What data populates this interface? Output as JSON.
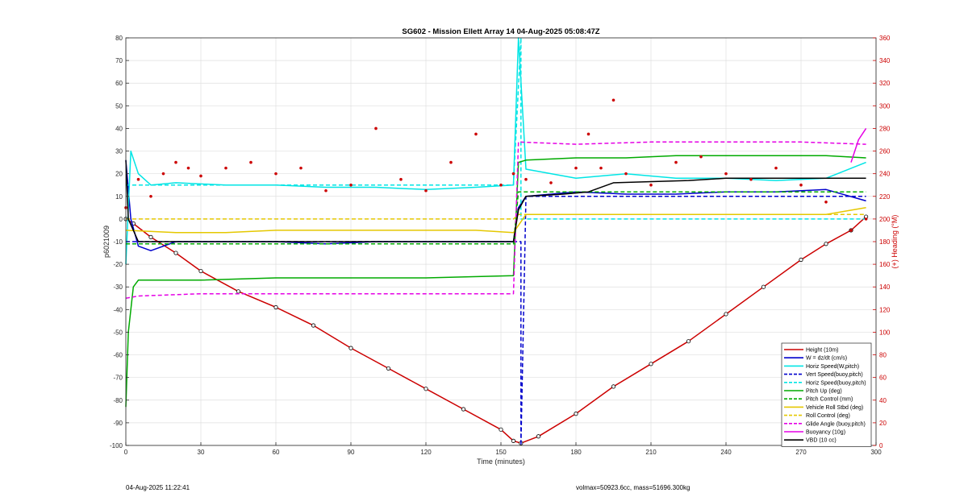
{
  "footer": {
    "timestamp": "04-Aug-2025 11:22:41",
    "volmax_mass": "volmax=50923.6cc, mass=51696.300kg"
  },
  "chart_data": {
    "type": "line",
    "title": "SG602 - Mission Ellett Array 14 04-Aug-2025 05:08:47Z",
    "xlabel": "Time (minutes)",
    "ylabel": "p6021009",
    "y2label": "(+) Heading (°M)",
    "xlim": [
      0,
      300
    ],
    "ylim": [
      -100,
      80
    ],
    "y2lim": [
      0,
      360
    ],
    "xticks": [
      0,
      30,
      60,
      90,
      120,
      150,
      180,
      210,
      240,
      270,
      300
    ],
    "yticks": [
      -100,
      -90,
      -80,
      -70,
      -60,
      -50,
      -40,
      -30,
      -20,
      -10,
      0,
      10,
      20,
      30,
      40,
      50,
      60,
      70,
      80
    ],
    "y2ticks": [
      0,
      20,
      40,
      60,
      80,
      100,
      120,
      140,
      160,
      180,
      200,
      220,
      240,
      260,
      280,
      300,
      320,
      340,
      360
    ],
    "grid": true,
    "legend_position": "bottom-right",
    "legend": [
      {
        "label": "Height (10m)",
        "color": "#cc0000",
        "style": "solid"
      },
      {
        "label": "W = dz/dt (cm/s)",
        "color": "#0000cc",
        "style": "solid"
      },
      {
        "label": "Horiz Speed(W,pitch)",
        "color": "#00e5e5",
        "style": "solid"
      },
      {
        "label": "Vert Speed(buoy,pitch)",
        "color": "#0000cc",
        "style": "dashed"
      },
      {
        "label": "Horiz Speed(buoy,pitch)",
        "color": "#00e5e5",
        "style": "dashed"
      },
      {
        "label": "Pitch Up (deg)",
        "color": "#00aa00",
        "style": "solid"
      },
      {
        "label": "Pitch Control (mm)",
        "color": "#00aa00",
        "style": "dashed"
      },
      {
        "label": "Vehicle Roll Stbd (deg)",
        "color": "#e5c800",
        "style": "solid"
      },
      {
        "label": "Roll Control (deg)",
        "color": "#e5c800",
        "style": "dashed"
      },
      {
        "label": "Glide Angle (buoy,pitch)",
        "color": "#e500e5",
        "style": "dashed"
      },
      {
        "label": "Buoyancy (10g)",
        "color": "#e500e5",
        "style": "solid"
      },
      {
        "label": "VBD (10 cc)",
        "color": "#000000",
        "style": "solid"
      }
    ],
    "series": [
      {
        "name": "Height (10m)",
        "x": [
          0,
          3,
          10,
          20,
          30,
          45,
          60,
          75,
          90,
          105,
          120,
          135,
          150,
          155,
          158,
          165,
          180,
          195,
          210,
          225,
          240,
          255,
          270,
          280,
          290,
          296
        ],
        "values": [
          0,
          -2,
          -8,
          -15,
          -23,
          -32,
          -39,
          -47,
          -57,
          -66,
          -75,
          -84,
          -93,
          -98,
          -99,
          -96,
          -86,
          -74,
          -64,
          -54,
          -42,
          -30,
          -18,
          -11,
          -5,
          1
        ]
      },
      {
        "name": "W = dz/dt (cm/s)",
        "x": [
          0,
          2,
          5,
          10,
          20,
          40,
          60,
          80,
          100,
          120,
          140,
          155,
          157,
          160,
          180,
          200,
          220,
          240,
          260,
          280,
          296
        ],
        "values": [
          26,
          0,
          -12,
          -14,
          -10,
          -10,
          -10,
          -11,
          -10,
          -10,
          -10,
          -10,
          5,
          10,
          12,
          11,
          11,
          12,
          12,
          13,
          8
        ]
      },
      {
        "name": "Horiz Speed(W,pitch)",
        "x": [
          0,
          2,
          5,
          10,
          20,
          40,
          60,
          80,
          100,
          120,
          140,
          155,
          157,
          160,
          180,
          200,
          220,
          240,
          260,
          280,
          296
        ],
        "values": [
          -20,
          30,
          20,
          15,
          16,
          15,
          15,
          14,
          14,
          13,
          14,
          15,
          80,
          22,
          18,
          20,
          18,
          18,
          17,
          18,
          25
        ]
      },
      {
        "name": "Vert Speed(buoy,pitch)",
        "x": [
          0,
          155,
          158,
          158,
          160,
          296
        ],
        "values": [
          -10,
          -10,
          -10,
          -100,
          10,
          10
        ]
      },
      {
        "name": "Horiz Speed(buoy,pitch)",
        "x": [
          0,
          155,
          158,
          158,
          296
        ],
        "values": [
          15,
          15,
          80,
          0,
          0
        ]
      },
      {
        "name": "Pitch Up (deg)",
        "x": [
          0,
          1,
          3,
          5,
          10,
          30,
          60,
          90,
          120,
          155,
          157,
          160,
          180,
          200,
          220,
          240,
          260,
          280,
          296
        ],
        "values": [
          -83,
          -50,
          -30,
          -27,
          -27,
          -27,
          -26,
          -26,
          -26,
          -25,
          25,
          26,
          27,
          27,
          28,
          28,
          28,
          28,
          27
        ]
      },
      {
        "name": "Pitch Control (mm)",
        "x": [
          0,
          155,
          157,
          296
        ],
        "values": [
          -11,
          -11,
          12,
          12
        ]
      },
      {
        "name": "Vehicle Roll Stbd (deg)",
        "x": [
          0,
          20,
          40,
          60,
          80,
          100,
          120,
          140,
          155,
          160,
          180,
          200,
          220,
          240,
          260,
          280,
          296
        ],
        "values": [
          -5,
          -6,
          -6,
          -5,
          -5,
          -5,
          -5,
          -5,
          -6,
          2,
          2,
          2,
          2,
          2,
          2,
          2,
          5
        ]
      },
      {
        "name": "Roll Control (deg)",
        "x": [
          0,
          155,
          157,
          296
        ],
        "values": [
          0,
          0,
          2,
          2
        ]
      },
      {
        "name": "Glide Angle (buoy,pitch)",
        "x": [
          0,
          5,
          30,
          60,
          90,
          120,
          155,
          157,
          180,
          210,
          240,
          270,
          296
        ],
        "values": [
          -35,
          -34,
          -33,
          -33,
          -33,
          -33,
          -33,
          34,
          33,
          34,
          34,
          34,
          33
        ]
      },
      {
        "name": "Buoyancy (10g)",
        "x": [
          290,
          293,
          296
        ],
        "values": [
          25,
          35,
          40
        ]
      },
      {
        "name": "VBD (10 cc)",
        "x": [
          0,
          1,
          5,
          155,
          157,
          160,
          175,
          185,
          195,
          225,
          240,
          260,
          296
        ],
        "values": [
          26,
          0,
          -10,
          -10,
          4,
          10,
          11,
          12,
          16,
          17,
          18,
          18,
          18
        ]
      },
      {
        "name": "(+) Heading (°M)",
        "x": [
          0,
          5,
          10,
          15,
          20,
          25,
          30,
          40,
          50,
          60,
          70,
          80,
          90,
          100,
          110,
          120,
          130,
          140,
          150,
          155,
          160,
          170,
          180,
          185,
          190,
          195,
          200,
          210,
          220,
          230,
          240,
          250,
          260,
          270,
          280,
          290,
          296
        ],
        "values": [
          210,
          235,
          220,
          240,
          250,
          245,
          238,
          245,
          250,
          240,
          245,
          225,
          230,
          280,
          235,
          225,
          250,
          275,
          230,
          240,
          235,
          232,
          245,
          275,
          245,
          305,
          240,
          230,
          250,
          255,
          240,
          235,
          245,
          230,
          215,
          190,
          200
        ]
      }
    ]
  }
}
